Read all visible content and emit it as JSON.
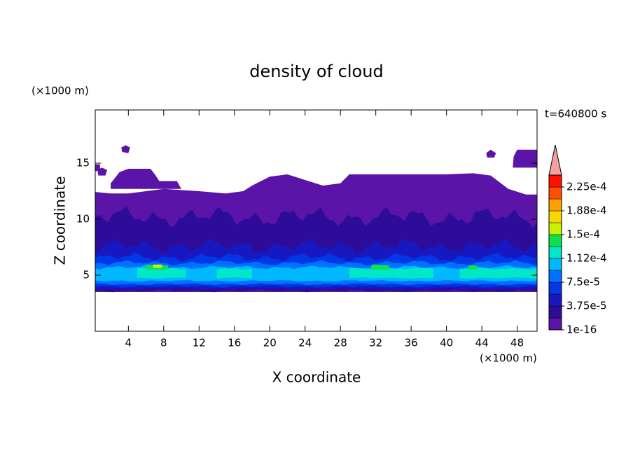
{
  "chart_data": {
    "type": "contour",
    "title": "density of cloud",
    "x_label": "X coordinate",
    "y_label": "Z coordinate",
    "x_unit": "(×1000 m)",
    "y_unit": "(×1000 m)",
    "time_label": "t=640800 s",
    "xlim": [
      0.25,
      50.25
    ],
    "ylim": [
      0,
      19.75
    ],
    "xticks": [
      4,
      8,
      12,
      16,
      20,
      24,
      28,
      32,
      36,
      40,
      44,
      48
    ],
    "yticks": [
      5,
      10,
      15
    ],
    "colorbar": {
      "lim": [
        1e-16,
        0.00024375
      ],
      "ticks": [
        {
          "value": 1e-16,
          "label": "1e-16"
        },
        {
          "value": 3.75e-05,
          "label": "3.75e-5"
        },
        {
          "value": 7.5e-05,
          "label": "7.5e-5"
        },
        {
          "value": 0.0001125,
          "label": "1.12e-4"
        },
        {
          "value": 0.00015,
          "label": "1.5e-4"
        },
        {
          "value": 0.0001875,
          "label": "1.88e-4"
        },
        {
          "value": 0.000225,
          "label": "2.25e-4"
        }
      ],
      "colors": [
        "#5a14a8",
        "#2c0c98",
        "#1818c0",
        "#0038e8",
        "#0070ff",
        "#00b8ff",
        "#00e8c8",
        "#10e050",
        "#c8f000",
        "#f8d800",
        "#ffa000",
        "#ff5000",
        "#ff1000"
      ],
      "extend_color": "#f4a0a0"
    }
  }
}
